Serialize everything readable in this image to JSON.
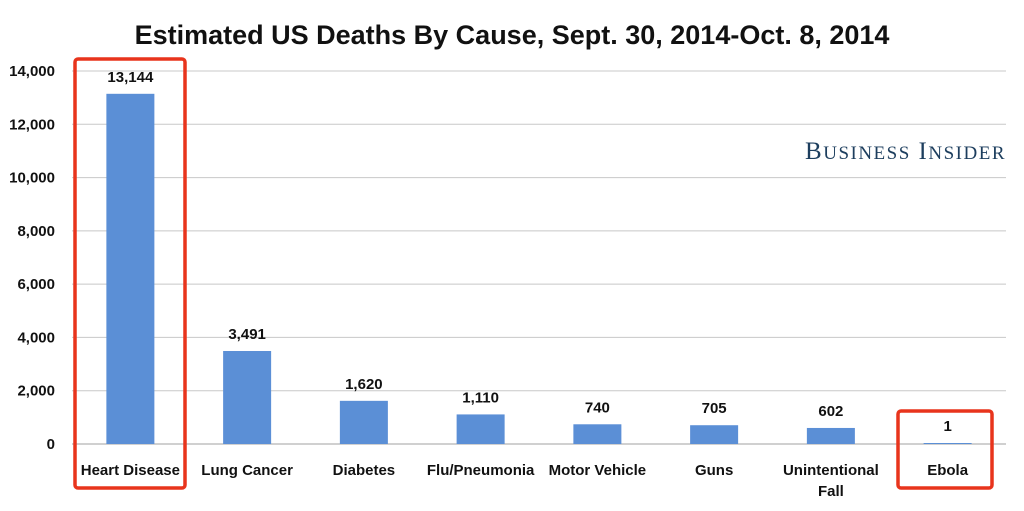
{
  "chart_data": {
    "type": "bar",
    "title": "Estimated US Deaths By Cause, Sept. 30, 2014-Oct. 8, 2014",
    "categories": [
      "Heart Disease",
      "Lung Cancer",
      "Diabetes",
      "Flu/Pneumonia",
      "Motor Vehicle",
      "Guns",
      "Unintentional Fall",
      "Ebola"
    ],
    "category_lines": [
      [
        "Heart Disease"
      ],
      [
        "Lung Cancer"
      ],
      [
        "Diabetes"
      ],
      [
        "Flu/Pneumonia"
      ],
      [
        "Motor Vehicle"
      ],
      [
        "Guns"
      ],
      [
        "Unintentional",
        "Fall"
      ],
      [
        "Ebola"
      ]
    ],
    "values": [
      13144,
      3491,
      1620,
      1110,
      740,
      705,
      602,
      1
    ],
    "value_labels": [
      "13,144",
      "3,491",
      "1,620",
      "1,110",
      "740",
      "705",
      "602",
      "1"
    ],
    "xlabel": "",
    "ylabel": "",
    "ylim": [
      0,
      14000
    ],
    "yticks": [
      0,
      2000,
      4000,
      6000,
      8000,
      10000,
      12000,
      14000
    ],
    "ytick_labels": [
      "0",
      "2,000",
      "4,000",
      "6,000",
      "8,000",
      "10,000",
      "12,000",
      "14,000"
    ],
    "grid": true,
    "legend": "none",
    "highlighted_categories": [
      "Heart Disease",
      "Ebola"
    ],
    "colors": {
      "bar": "#5b8fd6",
      "highlight_box": "#e8341c",
      "grid": "#c8c8c8",
      "text": "#111111",
      "logo": "#1d3e5e"
    }
  },
  "branding": {
    "logo_text": "Business Insider"
  }
}
